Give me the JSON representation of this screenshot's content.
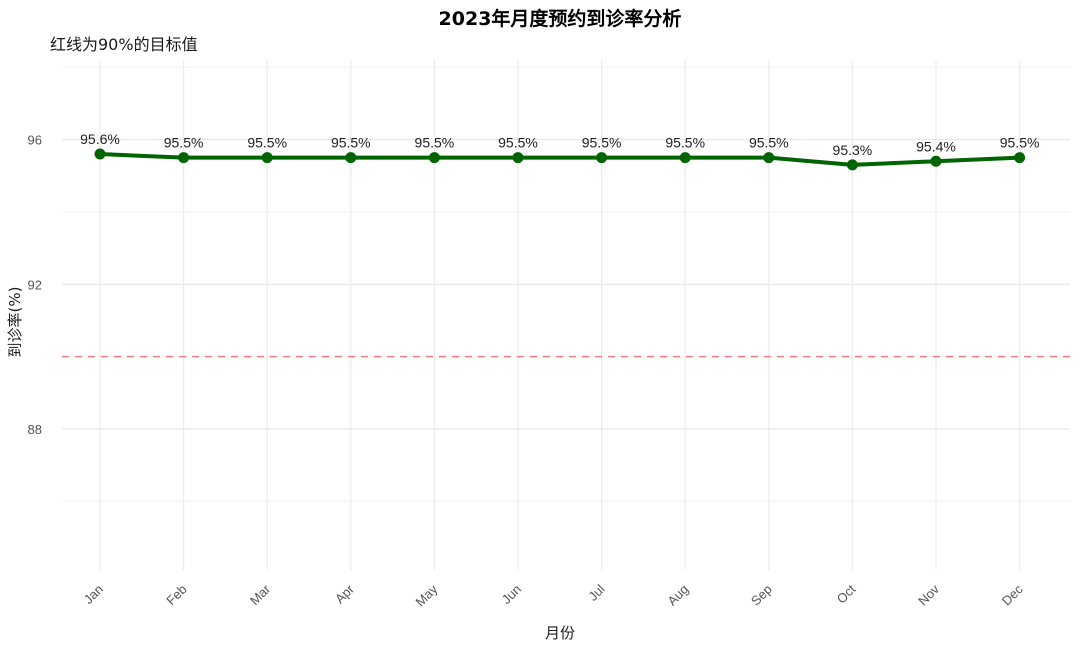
{
  "chart_data": {
    "type": "line",
    "title": "2023年月度预约到诊率分析",
    "subtitle": "红线为90%的目标值",
    "xlabel": "月份",
    "ylabel": "到诊率(%)",
    "categories": [
      "Jan",
      "Feb",
      "Mar",
      "Apr",
      "May",
      "Jun",
      "Jul",
      "Aug",
      "Sep",
      "Oct",
      "Nov",
      "Dec"
    ],
    "series": [
      {
        "values": [
          95.6,
          95.5,
          95.5,
          95.5,
          95.5,
          95.5,
          95.5,
          95.5,
          95.5,
          95.3,
          95.4,
          95.5
        ],
        "labels": [
          "95.6%",
          "95.5%",
          "95.5%",
          "95.5%",
          "95.5%",
          "95.5%",
          "95.5%",
          "95.5%",
          "95.5%",
          "95.3%",
          "95.4%",
          "95.5%"
        ],
        "color": "#006400"
      }
    ],
    "reference_line": {
      "value": 90,
      "color": "#f08080",
      "style": "dashed"
    },
    "ylim": [
      84.1,
      98.2
    ],
    "yticks": [
      88,
      92,
      96
    ],
    "grid": true,
    "legend": "none"
  }
}
